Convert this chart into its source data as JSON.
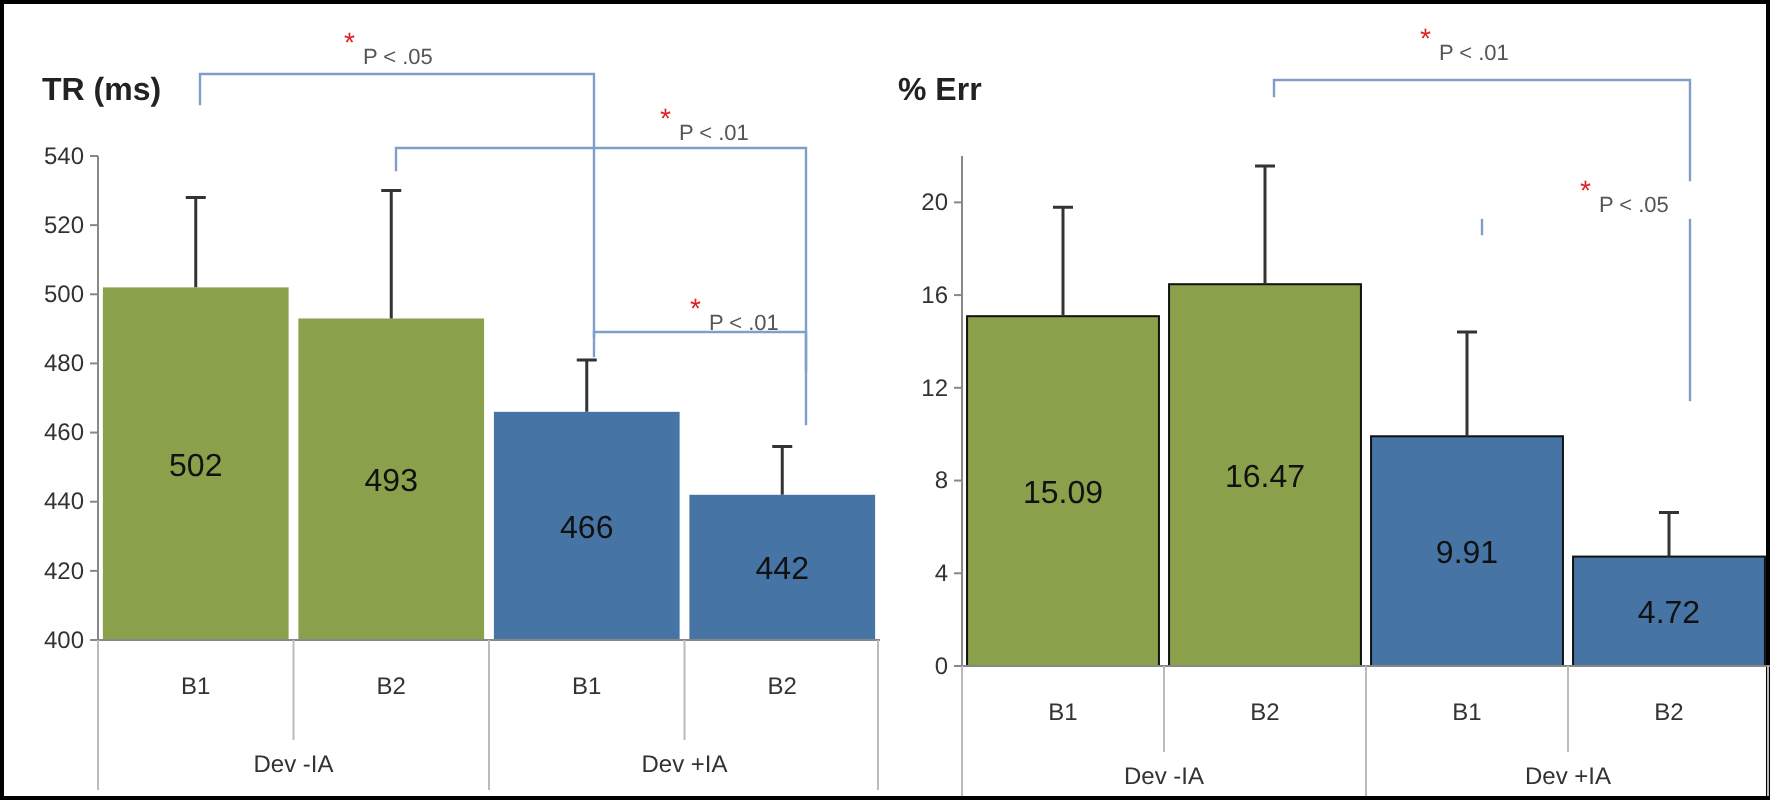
{
  "chart_data": [
    {
      "type": "bar",
      "ylabel": "TR (ms)",
      "categories": [
        "B1",
        "B2",
        "B1",
        "B2"
      ],
      "values": [
        502,
        493,
        466,
        442
      ],
      "colors": [
        "#8aa04a",
        "#8aa04a",
        "#4674a4",
        "#4674a4"
      ],
      "errors": [
        26,
        37,
        15,
        14
      ],
      "ylim": [
        400,
        540
      ],
      "yticks": [
        400,
        420,
        440,
        460,
        480,
        500,
        520,
        540
      ],
      "data_labels": true,
      "grid": false,
      "annotations": [
        "Dev -IA",
        "Dev +IA",
        "$^{*}$P < .05",
        "$^{*}$P < .01",
        "$^{*}$P < .01"
      ]
    },
    {
      "type": "bar",
      "ylabel": "% Err",
      "categories": [
        "B1",
        "B2",
        "B1",
        "B2"
      ],
      "values": [
        15.09,
        16.47,
        9.91,
        4.72
      ],
      "colors": [
        "#8aa04a",
        "#8aa04a",
        "#4674a4",
        "#4674a4"
      ],
      "errors": [
        4.7,
        5.1,
        4.5,
        1.9
      ],
      "ylim": [
        0,
        22
      ],
      "yticks": [
        0,
        4,
        8,
        12,
        16,
        20
      ],
      "data_labels": true,
      "grid": false,
      "annotations": [
        "Dev -IA",
        "Dev +IA",
        "$^{*}$P < .01",
        "$^{*}$P < .05"
      ]
    }
  ]
}
